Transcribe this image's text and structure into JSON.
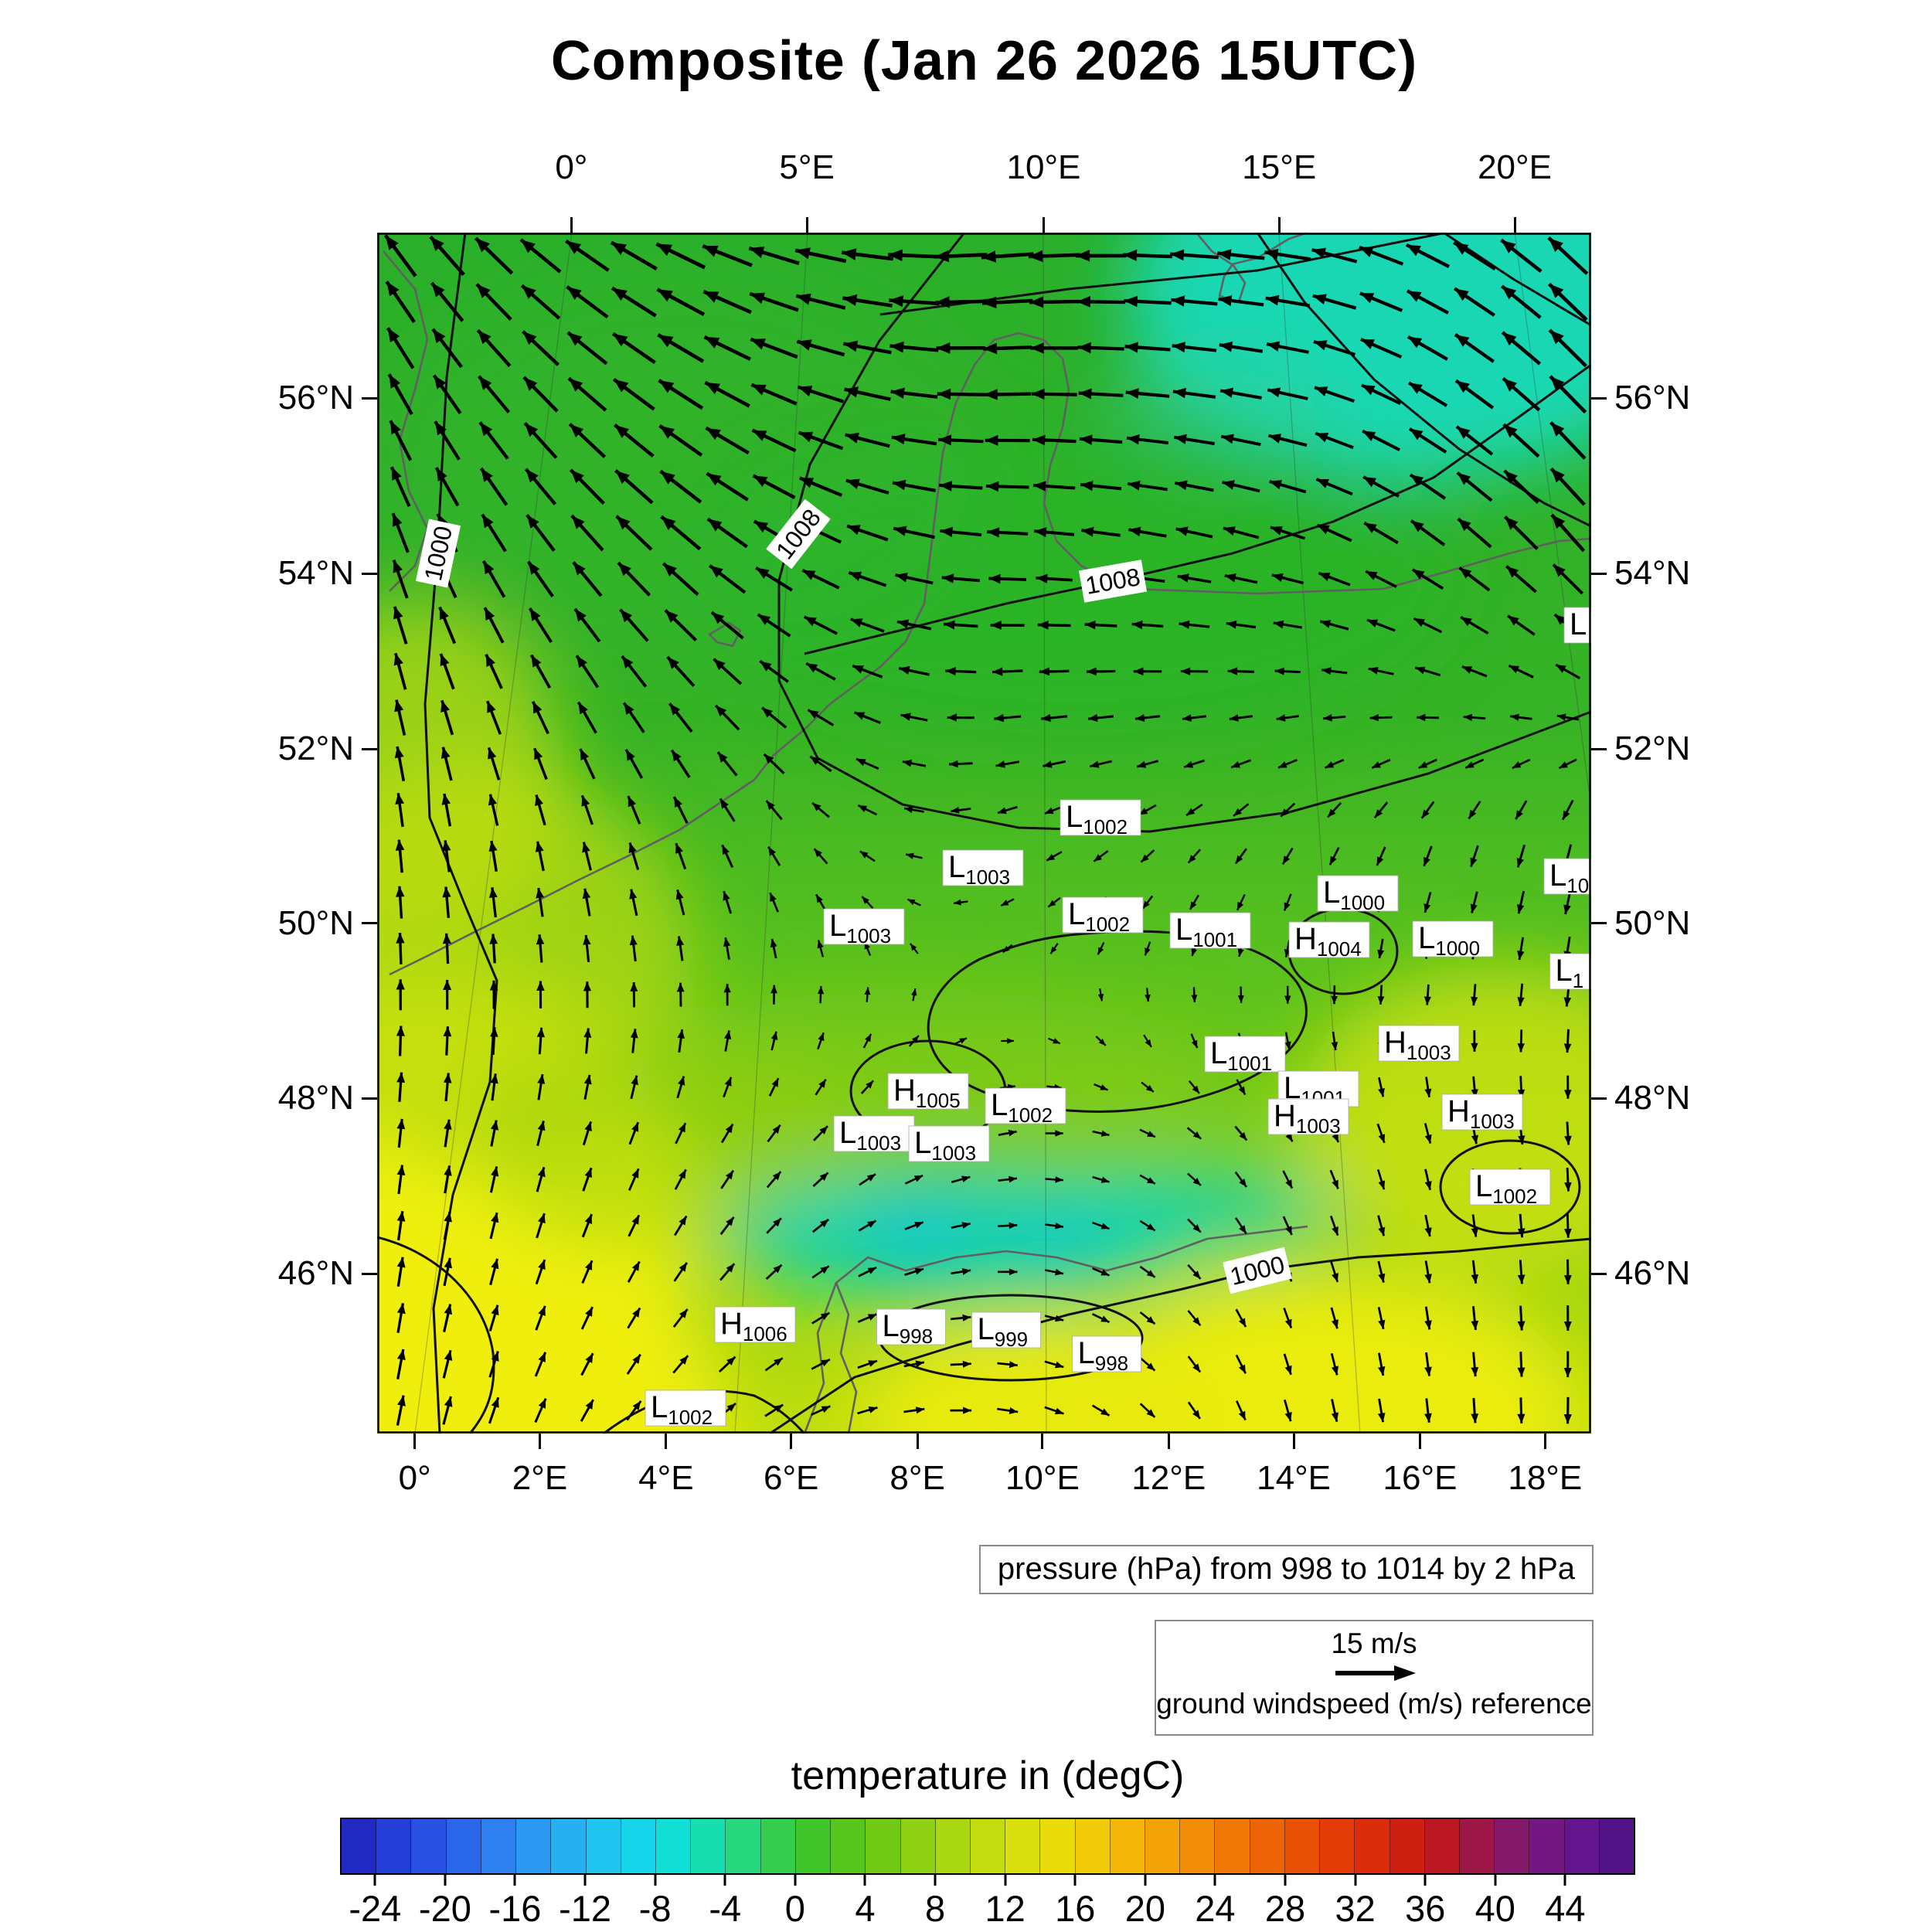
{
  "chart_data": {
    "type": "heatmap",
    "title": "Composite (Jan 26 2026 15UTC)",
    "layers": {
      "shading": "temperature in (degC)",
      "contours": "pressure (hPa) from 998 to 1014 by 2 hPa",
      "vectors": "ground windspeed (m/s) reference, arrow scale 15 m/s"
    },
    "contour_levels_hpa": [
      998,
      1000,
      1002,
      1004,
      1006,
      1008,
      1010,
      1012,
      1014
    ],
    "pressure_caption": "pressure (hPa) from 998 to 1014 by 2 hPa",
    "wind_reference": {
      "label": "15 m/s",
      "caption": "ground windspeed (m/s) reference"
    },
    "axes": {
      "top_ticks": [
        {
          "label": "0°",
          "fx": 0.16
        },
        {
          "label": "5°E",
          "fx": 0.354
        },
        {
          "label": "10°E",
          "fx": 0.549
        },
        {
          "label": "15°E",
          "fx": 0.743
        },
        {
          "label": "20°E",
          "fx": 0.937
        }
      ],
      "bottom_ticks": [
        {
          "label": "0°",
          "fx": 0.031
        },
        {
          "label": "2°E",
          "fx": 0.134
        },
        {
          "label": "4°E",
          "fx": 0.238
        },
        {
          "label": "6°E",
          "fx": 0.341
        },
        {
          "label": "8°E",
          "fx": 0.445
        },
        {
          "label": "10°E",
          "fx": 0.548
        },
        {
          "label": "12°E",
          "fx": 0.652
        },
        {
          "label": "14°E",
          "fx": 0.755
        },
        {
          "label": "16°E",
          "fx": 0.859
        },
        {
          "label": "18°E",
          "fx": 0.962
        }
      ],
      "left_ticks": [
        {
          "label": "56°N",
          "fy": 0.138
        },
        {
          "label": "54°N",
          "fy": 0.284
        },
        {
          "label": "52°N",
          "fy": 0.43
        },
        {
          "label": "50°N",
          "fy": 0.575
        },
        {
          "label": "48°N",
          "fy": 0.721
        },
        {
          "label": "46°N",
          "fy": 0.867
        }
      ],
      "right_ticks": [
        {
          "label": "56°N",
          "fy": 0.138
        },
        {
          "label": "54°N",
          "fy": 0.284
        },
        {
          "label": "52°N",
          "fy": 0.43
        },
        {
          "label": "50°N",
          "fy": 0.575
        },
        {
          "label": "48°N",
          "fy": 0.721
        },
        {
          "label": "46°N",
          "fy": 0.867
        }
      ]
    },
    "colorbar": {
      "title": "temperature in (degC)",
      "units": "degC",
      "range": [
        -26,
        48
      ],
      "segment_step": 2,
      "ticks": [
        "-24",
        "-20",
        "-16",
        "-12",
        "-8",
        "-4",
        "0",
        "4",
        "8",
        "12",
        "16",
        "20",
        "24",
        "28",
        "32",
        "36",
        "40",
        "44"
      ],
      "stops": [
        [
          -26,
          "#1e1eb4"
        ],
        [
          -24,
          "#2136d2"
        ],
        [
          -20,
          "#2a5ae6"
        ],
        [
          -16,
          "#2e8cf0"
        ],
        [
          -12,
          "#23bcf2"
        ],
        [
          -8,
          "#12dce6"
        ],
        [
          -6,
          "#10e0c4"
        ],
        [
          -4,
          "#1fdc9a"
        ],
        [
          -2,
          "#30d464"
        ],
        [
          0,
          "#38c636"
        ],
        [
          2,
          "#48c420"
        ],
        [
          6,
          "#80cc14"
        ],
        [
          10,
          "#b6da10"
        ],
        [
          14,
          "#e4e20c"
        ],
        [
          16,
          "#f0d40a"
        ],
        [
          20,
          "#f4ac08"
        ],
        [
          24,
          "#f08206"
        ],
        [
          28,
          "#ea5a04"
        ],
        [
          32,
          "#e23208"
        ],
        [
          36,
          "#c61a14"
        ],
        [
          38,
          "#ae1430"
        ],
        [
          40,
          "#8c1a5c"
        ],
        [
          44,
          "#6a1690"
        ],
        [
          48,
          "#4a1282"
        ]
      ]
    },
    "pressure_centers": [
      {
        "type": "L",
        "value": "1002",
        "fx": 0.596,
        "fy": 0.487,
        "lon": 10.9,
        "lat": 51.2
      },
      {
        "type": "L",
        "value": "1003",
        "fx": 0.499,
        "fy": 0.529,
        "lon": 9.1,
        "lat": 50.6
      },
      {
        "type": "L",
        "value": "1003",
        "fx": 0.401,
        "fy": 0.578,
        "lon": 7.2,
        "lat": 50.0
      },
      {
        "type": "L",
        "value": "1002",
        "fx": 0.598,
        "fy": 0.568,
        "lon": 11.0,
        "lat": 50.1
      },
      {
        "type": "L",
        "value": "1001",
        "fx": 0.686,
        "fy": 0.581,
        "lon": 12.7,
        "lat": 49.9
      },
      {
        "type": "L",
        "value": "1000",
        "fx": 0.808,
        "fy": 0.55,
        "lon": 15.0,
        "lat": 50.3
      },
      {
        "type": "H",
        "value": "1004",
        "fx": 0.784,
        "fy": 0.589,
        "lon": 14.6,
        "lat": 49.8
      },
      {
        "type": "L",
        "value": "1000",
        "fx": 0.886,
        "fy": 0.588,
        "lon": 16.5,
        "lat": 49.8
      },
      {
        "type": "L",
        "value": "10",
        "fx": 0.985,
        "fy": 0.536,
        "lon": 18.4,
        "lat": 50.5,
        "truncated": true
      },
      {
        "type": "L",
        "value": "1",
        "fx": 0.985,
        "fy": 0.615,
        "lon": 18.4,
        "lat": 49.4,
        "truncated": true
      },
      {
        "type": "L",
        "value": "",
        "fx": 0.992,
        "fy": 0.327,
        "lon": 18.6,
        "lat": 53.4,
        "truncated": true
      },
      {
        "type": "L",
        "value": "1001",
        "fx": 0.715,
        "fy": 0.684,
        "lon": 13.2,
        "lat": 48.5
      },
      {
        "type": "H",
        "value": "1003",
        "fx": 0.858,
        "fy": 0.675,
        "lon": 16.0,
        "lat": 48.6
      },
      {
        "type": "L",
        "value": "1001",
        "fx": 0.775,
        "fy": 0.713,
        "lon": 14.4,
        "lat": 48.1
      },
      {
        "type": "H",
        "value": "1003",
        "fx": 0.767,
        "fy": 0.736,
        "lon": 14.2,
        "lat": 47.8
      },
      {
        "type": "H",
        "value": "1003",
        "fx": 0.91,
        "fy": 0.732,
        "lon": 17.0,
        "lat": 47.9
      },
      {
        "type": "H",
        "value": "1005",
        "fx": 0.454,
        "fy": 0.715,
        "lon": 8.2,
        "lat": 48.1
      },
      {
        "type": "L",
        "value": "1002",
        "fx": 0.534,
        "fy": 0.727,
        "lon": 9.7,
        "lat": 47.9
      },
      {
        "type": "L",
        "value": "1003",
        "fx": 0.409,
        "fy": 0.75,
        "lon": 7.3,
        "lat": 47.6
      },
      {
        "type": "L",
        "value": "1003",
        "fx": 0.471,
        "fy": 0.759,
        "lon": 8.5,
        "lat": 47.5
      },
      {
        "type": "L",
        "value": "1002",
        "fx": 0.933,
        "fy": 0.795,
        "lon": 17.4,
        "lat": 47.0
      },
      {
        "type": "H",
        "value": "1006",
        "fx": 0.311,
        "fy": 0.909,
        "lon": 5.4,
        "lat": 45.4
      },
      {
        "type": "L",
        "value": "998",
        "fx": 0.44,
        "fy": 0.911,
        "lon": 7.9,
        "lat": 45.4
      },
      {
        "type": "L",
        "value": "999",
        "fx": 0.518,
        "fy": 0.914,
        "lon": 9.4,
        "lat": 45.4
      },
      {
        "type": "L",
        "value": "998",
        "fx": 0.601,
        "fy": 0.934,
        "lon": 11.0,
        "lat": 45.1
      },
      {
        "type": "L",
        "value": "1002",
        "fx": 0.254,
        "fy": 0.979,
        "lon": 4.3,
        "lat": 44.5
      }
    ],
    "contour_labels": [
      {
        "text": "1000",
        "fx": 0.05,
        "fy": 0.267,
        "rot": -78
      },
      {
        "text": "1008",
        "fx": 0.347,
        "fy": 0.251,
        "rot": -52
      },
      {
        "text": "1008",
        "fx": 0.606,
        "fy": 0.29,
        "rot": -10
      },
      {
        "text": "1000",
        "fx": 0.725,
        "fy": 0.864,
        "rot": -14
      }
    ],
    "wind_grid": {
      "note": "coarse 5x5 field, angle deg (0=E, 90=N), length 0..1 of reference arrow",
      "angles": [
        [
          125,
          155,
          185,
          172,
          135
        ],
        [
          108,
          140,
          178,
          162,
          130
        ],
        [
          95,
          112,
          200,
          235,
          255
        ],
        [
          85,
          65,
          15,
          300,
          272
        ],
        [
          80,
          45,
          355,
          285,
          268
        ]
      ],
      "lengths": [
        [
          0.95,
          1.0,
          1.0,
          0.85,
          1.0
        ],
        [
          0.72,
          0.92,
          0.72,
          0.6,
          0.9
        ],
        [
          0.55,
          0.42,
          0.22,
          0.22,
          0.35
        ],
        [
          0.45,
          0.3,
          0.22,
          0.22,
          0.32
        ],
        [
          0.5,
          0.3,
          0.28,
          0.3,
          0.4
        ]
      ]
    }
  }
}
